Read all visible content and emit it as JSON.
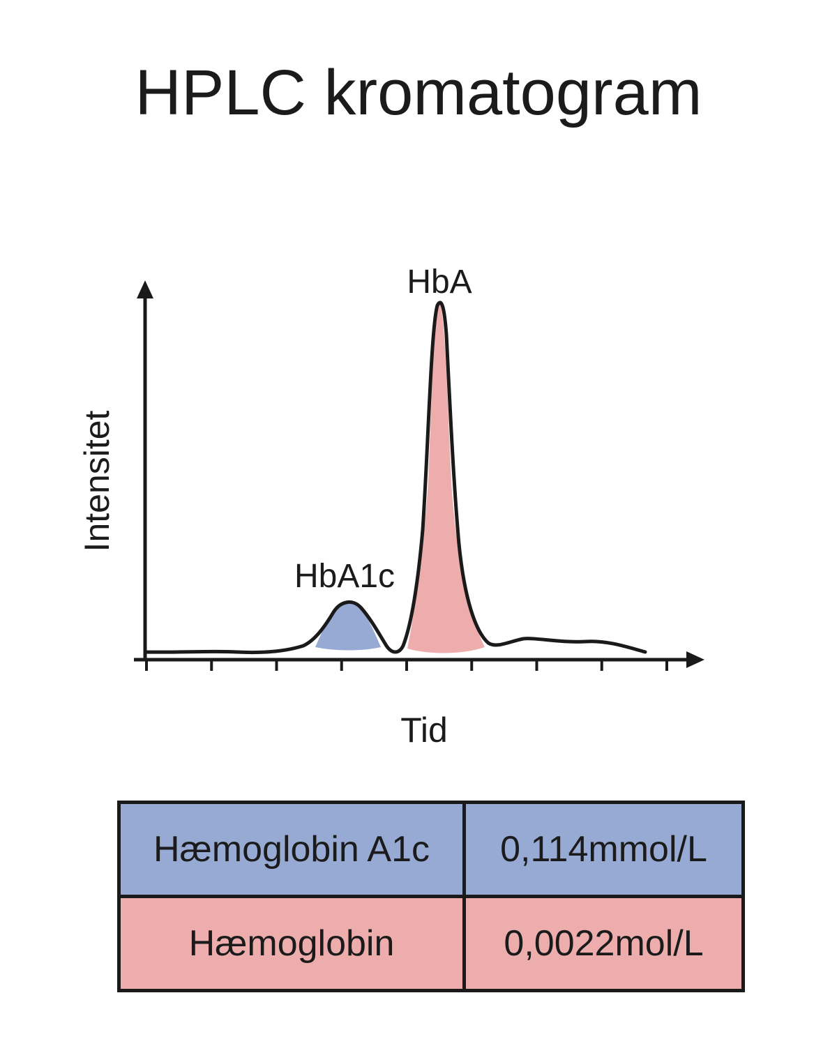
{
  "title": "HPLC kromatogram",
  "colors": {
    "hba1c_fill": "#97aad4",
    "hba_fill": "#edadad",
    "line": "#1a1a1a"
  },
  "chart_data": {
    "type": "area",
    "xlabel": "Tid",
    "ylabel": "Intensitet",
    "x_ticks": 9,
    "grid": false,
    "peaks": [
      {
        "label": "HbA1c",
        "relative_height": 0.15,
        "fill": "#97aad4"
      },
      {
        "label": "HbA",
        "relative_height": 1.0,
        "fill": "#edadad"
      }
    ]
  },
  "table": {
    "rows": [
      {
        "name": "Hæmoglobin A1c",
        "value": "0,114mmol/L"
      },
      {
        "name": "Hæmoglobin",
        "value": "0,0022mol/L"
      }
    ]
  }
}
